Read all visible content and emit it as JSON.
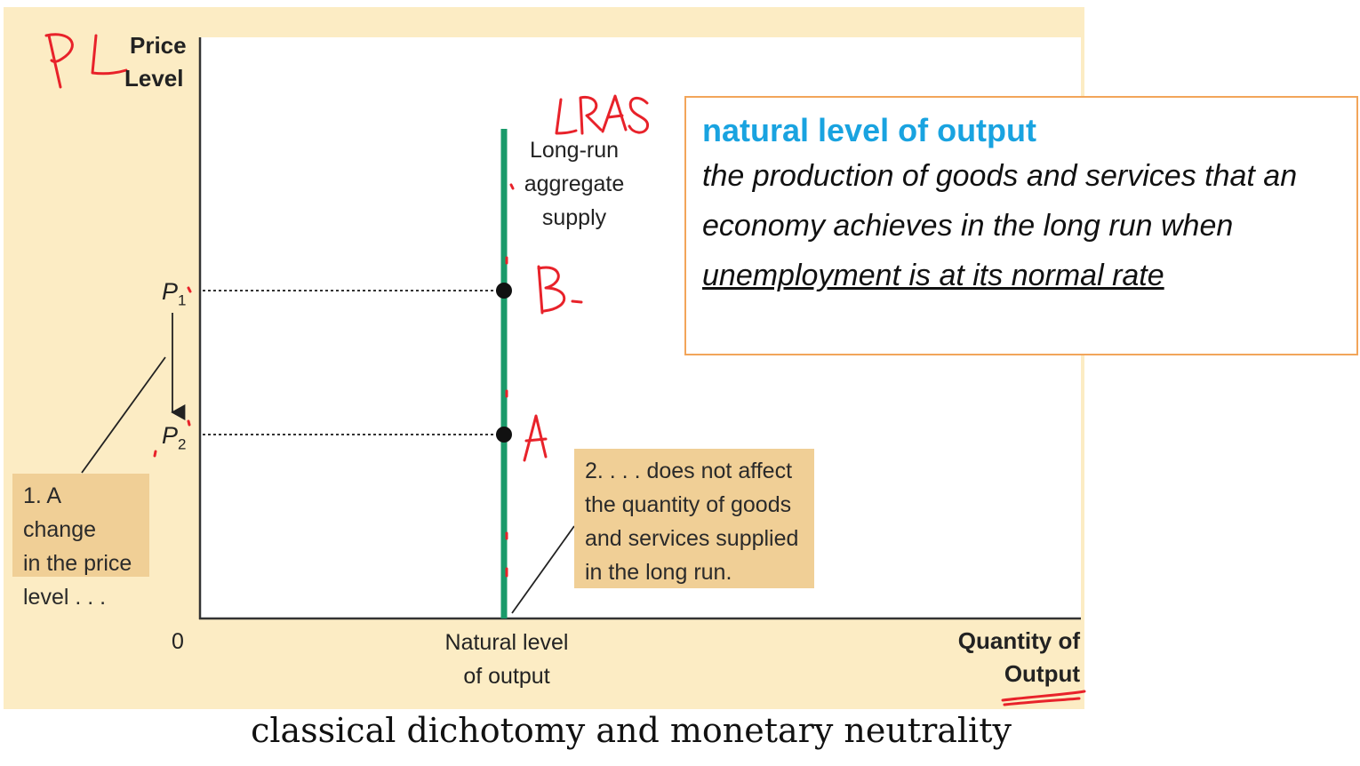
{
  "diagram": {
    "y_axis_title_line1": "Price",
    "y_axis_title_line2": "Level",
    "x_axis_title_line1": "Quantity of",
    "x_axis_title_line2": "Output",
    "origin_label": "0",
    "x_tick_line1": "Natural level",
    "x_tick_line2": "of output",
    "p1_label": "P",
    "p1_sub": "1",
    "p2_label": "P",
    "p2_sub": "2",
    "curve_label_line1": "Long-run",
    "curve_label_line2": "aggregate",
    "curve_label_line3": "supply",
    "curve_color": "#1a9a6a",
    "callout_left_line1": "1. A change",
    "callout_left_line2": "in the price",
    "callout_left_line3": "level . . .",
    "callout_right_line1": "2.  . . . does not affect",
    "callout_right_line2": "the quantity of goods",
    "callout_right_line3": "and services supplied",
    "callout_right_line4": "in the long run."
  },
  "handwriting": {
    "pl": "PL",
    "lras": "LRAS",
    "b": "B",
    "a": "A",
    "ink_color": "#e8222a"
  },
  "definition": {
    "term": "natural level of output",
    "text_plain": "the production of goods and services that an economy achieves in the long run when ",
    "text_underlined": "unemployment is at its normal rate"
  },
  "caption": "classical dichotomy and monetary neutrality"
}
